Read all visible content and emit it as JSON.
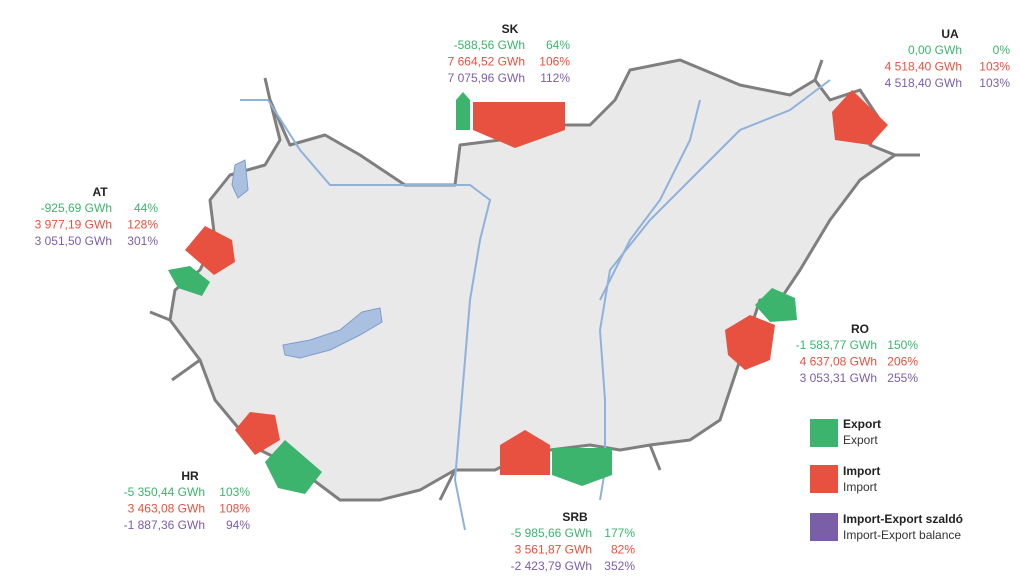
{
  "countries": [
    {
      "code": "SK",
      "export": {
        "value": "-588,56 GWh",
        "percent": "64%"
      },
      "import": {
        "value": "7 664,52 GWh",
        "percent": "106%"
      },
      "balance": {
        "value": "7 075,96 GWh",
        "percent": "112%"
      }
    },
    {
      "code": "UA",
      "export": {
        "value": "0,00 GWh",
        "percent": "0%"
      },
      "import": {
        "value": "4 518,40 GWh",
        "percent": "103%"
      },
      "balance": {
        "value": "4 518,40 GWh",
        "percent": "103%"
      }
    },
    {
      "code": "AT",
      "export": {
        "value": "-925,69 GWh",
        "percent": "44%"
      },
      "import": {
        "value": "3 977,19 GWh",
        "percent": "128%"
      },
      "balance": {
        "value": "3 051,50 GWh",
        "percent": "301%"
      }
    },
    {
      "code": "RO",
      "export": {
        "value": "-1 583,77 GWh",
        "percent": "150%"
      },
      "import": {
        "value": "4 637,08 GWh",
        "percent": "206%"
      },
      "balance": {
        "value": "3 053,31 GWh",
        "percent": "255%"
      }
    },
    {
      "code": "HR",
      "export": {
        "value": "-5 350,44 GWh",
        "percent": "103%"
      },
      "import": {
        "value": "3 463,08 GWh",
        "percent": "108%"
      },
      "balance": {
        "value": "-1 887,36 GWh",
        "percent": "94%"
      }
    },
    {
      "code": "SRB",
      "export": {
        "value": "-5 985,66 GWh",
        "percent": "177%"
      },
      "import": {
        "value": "3 561,87 GWh",
        "percent": "82%"
      },
      "balance": {
        "value": "-2 423,79 GWh",
        "percent": "352%"
      }
    }
  ],
  "legend": [
    {
      "title": "Export",
      "subtitle": "Export"
    },
    {
      "title": "Import",
      "subtitle": "Import"
    },
    {
      "title": "Import-Export szaldó",
      "subtitle": "Import-Export balance"
    }
  ]
}
